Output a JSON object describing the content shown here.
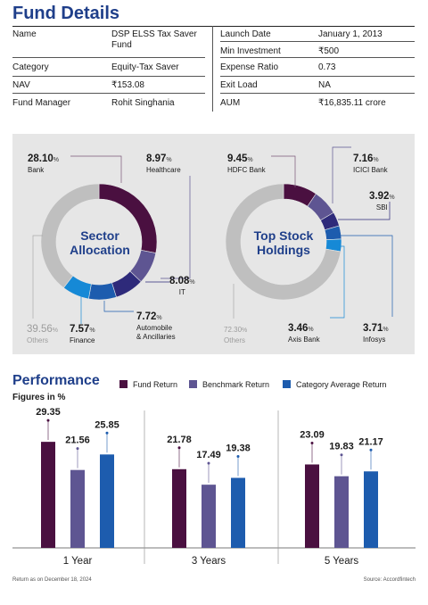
{
  "fund_details": {
    "title": "Fund Details",
    "left_rows": [
      {
        "label": "Name",
        "value": "DSP ELSS Tax Saver Fund"
      },
      {
        "label": "Category",
        "value": "Equity-Tax Saver"
      },
      {
        "label": "NAV",
        "value": "₹153.08"
      },
      {
        "label": "Fund Manager",
        "value": "Rohit Singhania"
      }
    ],
    "right_rows": [
      {
        "label": "Launch Date",
        "value": "January 1, 2013"
      },
      {
        "label": "Min Investment",
        "value": "₹500"
      },
      {
        "label": "Expense Ratio",
        "value": "0.73"
      },
      {
        "label": "Exit Load",
        "value": "NA"
      },
      {
        "label": "AUM",
        "value": "₹16,835.11 crore"
      }
    ]
  },
  "colors": {
    "title_blue": "#1f3f8a",
    "fund_return": "#4a1040",
    "benchmark_return": "#5e5592",
    "category_average": "#1d5cae",
    "others_grey": "#bfbfbf",
    "panel_bg": "#e6e6e6"
  },
  "sector_labels": {
    "title_line1": "Sector",
    "title_line2": "Allocation",
    "bank": {
      "value": "28.10",
      "pct": "%",
      "name": "Bank"
    },
    "healthcare": {
      "value": "8.97",
      "pct": "%",
      "name": "Healthcare"
    },
    "it": {
      "value": "8.08",
      "pct": "%",
      "name": "IT"
    },
    "automobile": {
      "value": "7.72",
      "pct": "%",
      "name_line1": "Automobile",
      "name_line2": "& Ancillaries"
    },
    "finance": {
      "value": "7.57",
      "pct": "%",
      "name": "Finance"
    },
    "others": {
      "value": "39.56",
      "pct": "%",
      "name": "Others"
    }
  },
  "holdings_labels": {
    "title_line1": "Top Stock",
    "title_line2": "Holdings",
    "hdfc": {
      "value": "9.45",
      "pct": "%",
      "name": "HDFC Bank"
    },
    "icici": {
      "value": "7.16",
      "pct": "%",
      "name": "ICICI Bank"
    },
    "sbi": {
      "value": "3.92",
      "pct": "%",
      "name": "SBI"
    },
    "infosys": {
      "value": "3.71",
      "pct": "%",
      "name": "Infosys"
    },
    "axis": {
      "value": "3.46",
      "pct": "%",
      "name": "Axis Bank"
    },
    "others": {
      "value": "72.30",
      "pct": "%",
      "name": "Others"
    }
  },
  "performance": {
    "title": "Performance",
    "subtitle": "Figures in %",
    "legend": [
      "Fund Return",
      "Benchmark Return",
      "Category Average Return"
    ],
    "footnote_left": "Return as on December 18, 2024",
    "footnote_right": "Source: Accordfintech"
  },
  "chart_data": [
    {
      "type": "pie",
      "title": "Sector Allocation",
      "donut": true,
      "slices": [
        {
          "label": "Bank",
          "value": 28.1,
          "color": "#4a1040"
        },
        {
          "label": "Healthcare",
          "value": 8.97,
          "color": "#5e5592"
        },
        {
          "label": "IT",
          "value": 8.08,
          "color": "#2e2a7a"
        },
        {
          "label": "Automobile & Ancillaries",
          "value": 7.72,
          "color": "#1d5cae"
        },
        {
          "label": "Finance",
          "value": 7.57,
          "color": "#1689d6"
        },
        {
          "label": "Others",
          "value": 39.56,
          "color": "#bfbfbf"
        }
      ]
    },
    {
      "type": "pie",
      "title": "Top Stock Holdings",
      "donut": true,
      "slices": [
        {
          "label": "HDFC Bank",
          "value": 9.45,
          "color": "#4a1040"
        },
        {
          "label": "ICICI Bank",
          "value": 7.16,
          "color": "#5e5592"
        },
        {
          "label": "SBI",
          "value": 3.92,
          "color": "#2e2a7a"
        },
        {
          "label": "Infosys",
          "value": 3.71,
          "color": "#1d5cae"
        },
        {
          "label": "Axis Bank",
          "value": 3.46,
          "color": "#1689d6"
        },
        {
          "label": "Others",
          "value": 72.3,
          "color": "#bfbfbf"
        }
      ]
    },
    {
      "type": "bar",
      "title": "Performance",
      "ylabel": "Figures in %",
      "categories": [
        "1 Year",
        "3 Years",
        "5 Years"
      ],
      "series": [
        {
          "name": "Fund Return",
          "values": [
            29.35,
            21.78,
            23.09
          ],
          "color": "#4a1040"
        },
        {
          "name": "Benchmark Return",
          "values": [
            21.56,
            17.49,
            19.83
          ],
          "color": "#5e5592"
        },
        {
          "name": "Category Average Return",
          "values": [
            25.85,
            19.38,
            21.17
          ],
          "color": "#1d5cae"
        }
      ],
      "ylim": [
        0,
        40
      ]
    }
  ]
}
